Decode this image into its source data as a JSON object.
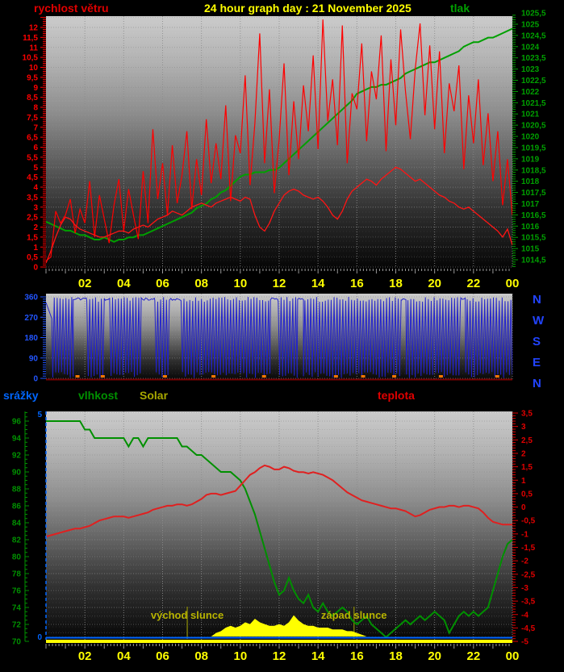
{
  "title": "24 hour graph day : 21 November 2025",
  "legend": {
    "wind": "rychlost větru",
    "pressure": "tlak",
    "rain": "srážky",
    "humidity": "vlhkost",
    "solar": "Solar",
    "temperature": "teplota"
  },
  "compass": [
    "N",
    "W",
    "S",
    "E",
    "N"
  ],
  "sun": {
    "rise_label": "východ slunce",
    "set_label": "západ slunce",
    "rise_hour": 7.27,
    "set_hour": 15.85
  },
  "x_axis": {
    "labels": [
      "02",
      "04",
      "06",
      "08",
      "10",
      "12",
      "14",
      "16",
      "18",
      "20",
      "22",
      "00"
    ],
    "hours": [
      2,
      4,
      6,
      8,
      10,
      12,
      14,
      16,
      18,
      20,
      22,
      24
    ]
  },
  "colors": {
    "background": "#000000",
    "title": "#ffff00",
    "wind": "#ff0000",
    "wind_avg": "#ff1414",
    "pressure": "#00a000",
    "direction": "#2222cc",
    "direction_axis": "#2255ff",
    "compass": "#2244ff",
    "rain": "#0066ff",
    "humidity": "#009000",
    "temperature": "#e02020",
    "temperature_axis": "#e00000",
    "solar": "#ffff00",
    "sun_line": "#78780a",
    "orange_marks": "#ff7700",
    "xlabels": "#ffff00",
    "grid": "#8a8a8a",
    "frame_bottom_mid": "#7a0000",
    "frame_bottom_low": "#ffff00"
  },
  "chart_data": [
    {
      "type": "line",
      "name": "wind-and-pressure",
      "x_start_hour": 0,
      "x_end_hour": 24,
      "sample_step_hours": 0.25,
      "wind_axis": {
        "min": 0,
        "max": 12.5,
        "label_max": 12,
        "label_step": 0.5
      },
      "pressure_axis": {
        "min": 1014.1,
        "max": 1025.4,
        "label_max": 1025.5,
        "label_min": 1014.5,
        "label_step": 0.5
      },
      "series": [
        {
          "name": "wind_gust",
          "axis": "wind",
          "values": [
            0.3,
            0.5,
            2.8,
            2.2,
            2.6,
            3.4,
            1.7,
            2.9,
            2.2,
            4.3,
            1.5,
            3.6,
            2.4,
            1.2,
            3.1,
            4.4,
            1.8,
            3.9,
            2.6,
            1.4,
            4.8,
            2.2,
            6.9,
            3.4,
            5.2,
            2.6,
            6.1,
            3.2,
            4.6,
            6.8,
            2.9,
            5.4,
            3.6,
            7.4,
            4.2,
            6.2,
            4.4,
            8.1,
            3.3,
            6.6,
            5.7,
            9.6,
            4.1,
            7.2,
            11.7,
            5.2,
            8.9,
            3.7,
            6.4,
            10.2,
            4.6,
            8.3,
            5.4,
            9.1,
            6.8,
            10.6,
            5.9,
            12.4,
            7.3,
            9.4,
            6.1,
            12.1,
            5.2,
            8.7,
            7.9,
            11.2,
            6.3,
            9.8,
            8.4,
            11.6,
            5.8,
            10.4,
            7.1,
            11.9,
            8.8,
            6.4,
            9.9,
            12.2,
            7.6,
            11.1,
            6.9,
            10.8,
            5.7,
            9.2,
            7.8,
            10.1,
            4.9,
            8.6,
            6.2,
            9.4,
            5.1,
            7.7,
            4.3,
            6.8,
            3.1,
            5.4,
            2.6
          ]
        },
        {
          "name": "wind_average",
          "axis": "wind",
          "values": [
            0.2,
            0.8,
            1.5,
            2.1,
            2.5,
            2.4,
            2.1,
            1.9,
            1.8,
            1.7,
            1.6,
            1.5,
            1.5,
            1.6,
            1.7,
            1.8,
            1.8,
            1.7,
            1.9,
            2.0,
            2.1,
            2.0,
            2.2,
            2.4,
            2.5,
            2.6,
            2.8,
            2.7,
            2.6,
            2.8,
            3.0,
            3.1,
            3.2,
            3.1,
            3.0,
            3.2,
            3.3,
            3.4,
            3.5,
            3.4,
            3.3,
            3.5,
            3.4,
            2.6,
            2.0,
            1.8,
            2.2,
            2.8,
            3.2,
            3.6,
            3.8,
            3.9,
            3.8,
            3.6,
            3.5,
            3.4,
            3.5,
            3.3,
            3.0,
            2.6,
            2.4,
            2.8,
            3.4,
            3.8,
            4.0,
            4.2,
            4.4,
            4.3,
            4.1,
            4.4,
            4.6,
            4.8,
            5.0,
            4.9,
            4.7,
            4.5,
            4.3,
            4.4,
            4.2,
            4.0,
            3.8,
            3.6,
            3.5,
            3.3,
            3.2,
            3.0,
            2.9,
            3.0,
            2.8,
            2.6,
            2.4,
            2.2,
            2.0,
            1.8,
            1.5,
            1.9,
            1.1
          ]
        },
        {
          "name": "pressure",
          "axis": "pressure",
          "values": [
            1016.2,
            1016.1,
            1016.0,
            1015.9,
            1015.8,
            1015.8,
            1015.7,
            1015.6,
            1015.6,
            1015.5,
            1015.4,
            1015.4,
            1015.5,
            1015.4,
            1015.3,
            1015.4,
            1015.4,
            1015.5,
            1015.5,
            1015.6,
            1015.6,
            1015.7,
            1015.8,
            1015.9,
            1016.0,
            1016.1,
            1016.2,
            1016.3,
            1016.4,
            1016.5,
            1016.6,
            1016.8,
            1016.9,
            1017.0,
            1017.2,
            1017.3,
            1017.5,
            1017.6,
            1017.8,
            1018.0,
            1018.2,
            1018.3,
            1018.3,
            1018.4,
            1018.4,
            1018.4,
            1018.5,
            1018.5,
            1018.6,
            1018.8,
            1019.0,
            1019.2,
            1019.4,
            1019.6,
            1019.8,
            1020.0,
            1020.2,
            1020.4,
            1020.6,
            1020.8,
            1021.0,
            1021.2,
            1021.4,
            1021.6,
            1021.9,
            1022.0,
            1022.1,
            1022.2,
            1022.2,
            1022.3,
            1022.3,
            1022.4,
            1022.5,
            1022.6,
            1022.8,
            1022.9,
            1023.0,
            1023.1,
            1023.2,
            1023.3,
            1023.3,
            1023.4,
            1023.5,
            1023.6,
            1023.7,
            1023.8,
            1024.0,
            1024.1,
            1024.2,
            1024.2,
            1024.3,
            1024.4,
            1024.4,
            1024.5,
            1024.6,
            1024.7,
            1024.8
          ]
        }
      ]
    },
    {
      "type": "line",
      "name": "wind-direction",
      "axis": {
        "min": 0,
        "max": 360,
        "label_step": 90,
        "labels": [
          "360",
          "270",
          "180",
          "90",
          "0"
        ]
      },
      "behaviour_segments": [
        [
          0.0,
          0.35,
          "slope"
        ],
        [
          0.35,
          1.4,
          "osc"
        ],
        [
          1.4,
          2.1,
          "top"
        ],
        [
          2.1,
          3.05,
          "osc"
        ],
        [
          3.05,
          3.35,
          "top"
        ],
        [
          3.35,
          4.9,
          "osc"
        ],
        [
          4.9,
          5.6,
          "top"
        ],
        [
          5.6,
          6.35,
          "osc"
        ],
        [
          6.35,
          6.95,
          "top"
        ],
        [
          6.95,
          11.55,
          "osc"
        ],
        [
          11.55,
          11.95,
          "top"
        ],
        [
          11.95,
          12.95,
          "osc"
        ],
        [
          12.95,
          13.25,
          "top"
        ],
        [
          13.25,
          18.3,
          "osc"
        ],
        [
          18.3,
          18.55,
          "top"
        ],
        [
          18.55,
          21.35,
          "osc"
        ],
        [
          21.35,
          21.6,
          "top"
        ],
        [
          21.6,
          24.0,
          "osc"
        ]
      ],
      "osc_high_deg": 350,
      "osc_low_deg": 10,
      "slope_from_deg": 335,
      "slope_to_deg": 252,
      "orange_mark_hours": [
        1.6,
        2.9,
        6.1,
        8.6,
        11.2,
        14.9,
        16.3,
        17.9,
        20.3,
        23.2
      ]
    },
    {
      "type": "line",
      "name": "humidity-temperature-solar-rain",
      "x_start_hour": 0,
      "x_end_hour": 24,
      "sample_step_hours": 0.25,
      "humidity_axis": {
        "label_max": 96,
        "label_min": 70,
        "label_step": 2
      },
      "temp_axis": {
        "label_max": 3.5,
        "label_min": -5,
        "label_step": 0.5
      },
      "rain_axis": {
        "max": 5,
        "min": 0,
        "labels": [
          "5",
          "0"
        ]
      },
      "series": [
        {
          "name": "humidity",
          "axis": "humidity",
          "values": [
            96,
            96,
            96,
            96,
            96,
            96,
            96,
            96,
            95,
            95,
            94,
            94,
            94,
            94,
            94,
            94,
            94,
            93,
            94,
            94,
            93,
            94,
            94,
            94,
            94,
            94,
            94,
            94,
            93,
            93,
            92.5,
            92,
            92,
            91.5,
            91,
            90.5,
            90,
            90,
            90,
            89.5,
            89,
            88,
            86.5,
            85,
            83,
            81,
            79,
            77,
            75.5,
            76,
            77.5,
            76,
            75,
            74.5,
            75.5,
            74,
            73.5,
            74.5,
            73.5,
            73,
            73.5,
            74,
            73.5,
            72.5,
            72,
            72.5,
            73,
            72,
            71.5,
            71,
            70.5,
            71,
            71.5,
            72,
            72.5,
            72,
            72.5,
            73,
            72.5,
            73,
            73.5,
            73,
            72.5,
            71,
            72,
            73,
            73.5,
            73,
            73.5,
            73,
            73.5,
            74,
            76,
            78,
            80,
            81.5,
            82
          ]
        },
        {
          "name": "temperature",
          "axis": "temp",
          "values": [
            -1.1,
            -1.05,
            -1.0,
            -0.95,
            -0.9,
            -0.85,
            -0.8,
            -0.8,
            -0.75,
            -0.7,
            -0.6,
            -0.5,
            -0.45,
            -0.4,
            -0.35,
            -0.35,
            -0.35,
            -0.4,
            -0.35,
            -0.3,
            -0.25,
            -0.2,
            -0.1,
            -0.05,
            0.0,
            0.05,
            0.05,
            0.1,
            0.1,
            0.05,
            0.1,
            0.2,
            0.3,
            0.45,
            0.5,
            0.5,
            0.45,
            0.5,
            0.55,
            0.6,
            0.8,
            1.0,
            1.2,
            1.3,
            1.45,
            1.55,
            1.5,
            1.4,
            1.4,
            1.5,
            1.45,
            1.35,
            1.3,
            1.3,
            1.25,
            1.3,
            1.25,
            1.2,
            1.1,
            1.0,
            0.85,
            0.7,
            0.55,
            0.45,
            0.35,
            0.25,
            0.2,
            0.15,
            0.1,
            0.05,
            0.0,
            -0.05,
            -0.05,
            -0.1,
            -0.15,
            -0.25,
            -0.35,
            -0.3,
            -0.2,
            -0.1,
            -0.05,
            0.0,
            0.0,
            0.05,
            0.05,
            0.0,
            0.05,
            0.05,
            0.0,
            -0.05,
            -0.2,
            -0.4,
            -0.55,
            -0.6,
            -0.65,
            -0.65,
            -0.65
          ]
        },
        {
          "name": "solar_relative",
          "axis": "solar",
          "values": [
            0,
            0,
            0,
            0,
            0,
            0,
            0,
            0,
            0,
            0,
            0,
            0,
            0,
            0,
            0,
            0,
            0,
            0,
            0,
            0,
            0,
            0,
            0,
            0,
            0,
            0,
            0,
            0,
            0,
            0,
            0,
            0,
            0,
            0,
            0,
            2,
            3,
            5,
            6,
            5,
            6,
            8,
            7,
            10,
            8,
            7,
            6,
            6,
            7,
            6,
            8,
            12,
            9,
            7,
            6,
            6,
            5,
            5,
            5,
            4,
            4,
            4,
            3,
            3,
            2,
            1,
            0,
            0,
            0,
            0,
            0,
            0,
            0,
            0,
            0,
            0,
            0,
            0,
            0,
            0,
            0,
            0,
            0,
            0,
            0,
            0,
            0,
            0,
            0,
            0,
            0,
            0,
            0,
            0,
            0,
            0,
            0
          ]
        },
        {
          "name": "rain",
          "axis": "rain",
          "constant_value": 0
        }
      ]
    }
  ]
}
